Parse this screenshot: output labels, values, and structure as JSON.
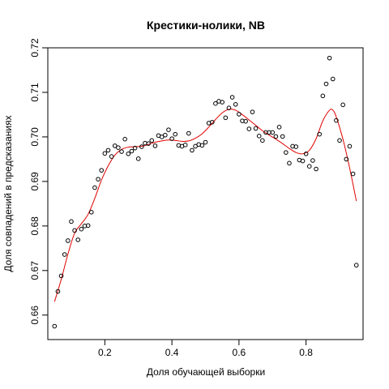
{
  "chart_data": {
    "type": "scatter",
    "title": "Крестики-нолики, NB",
    "xlabel": "Доля обучающей выборки",
    "ylabel": "Доля совпадений в предсказаниях",
    "xlim": [
      0.03,
      0.97
    ],
    "ylim": [
      0.6545,
      0.72
    ],
    "x_ticks": [
      0.2,
      0.4,
      0.6,
      0.8
    ],
    "x_tick_labels": [
      "0.2",
      "0.4",
      "0.6",
      "0.8"
    ],
    "y_ticks": [
      0.66,
      0.67,
      0.68,
      0.69,
      0.7,
      0.71,
      0.72
    ],
    "y_tick_labels": [
      "0.66",
      "0.67",
      "0.68",
      "0.69",
      "0.70",
      "0.71",
      "0.72"
    ],
    "grid": false,
    "series": [
      {
        "kind": "points",
        "color": "#000000",
        "x": [
          0.05,
          0.06,
          0.07,
          0.08,
          0.09,
          0.1,
          0.11,
          0.12,
          0.13,
          0.14,
          0.15,
          0.16,
          0.17,
          0.18,
          0.19,
          0.2,
          0.21,
          0.22,
          0.23,
          0.24,
          0.25,
          0.26,
          0.27,
          0.28,
          0.29,
          0.3,
          0.31,
          0.32,
          0.33,
          0.34,
          0.35,
          0.36,
          0.37,
          0.38,
          0.39,
          0.4,
          0.41,
          0.42,
          0.43,
          0.44,
          0.45,
          0.46,
          0.47,
          0.48,
          0.49,
          0.5,
          0.51,
          0.52,
          0.53,
          0.54,
          0.55,
          0.56,
          0.57,
          0.58,
          0.59,
          0.6,
          0.61,
          0.62,
          0.63,
          0.64,
          0.65,
          0.66,
          0.67,
          0.68,
          0.69,
          0.7,
          0.71,
          0.72,
          0.73,
          0.74,
          0.75,
          0.76,
          0.77,
          0.78,
          0.79,
          0.8,
          0.81,
          0.82,
          0.83,
          0.84,
          0.85,
          0.86,
          0.87,
          0.88,
          0.89,
          0.9,
          0.91,
          0.92,
          0.93,
          0.94,
          0.95
        ],
        "y": [
          0.6575,
          0.6653,
          0.6688,
          0.6736,
          0.6767,
          0.681,
          0.679,
          0.6769,
          0.6793,
          0.68,
          0.6801,
          0.6831,
          0.6886,
          0.6905,
          0.6925,
          0.6963,
          0.697,
          0.6956,
          0.698,
          0.6976,
          0.6967,
          0.6995,
          0.6962,
          0.6968,
          0.6975,
          0.6951,
          0.6978,
          0.6986,
          0.6985,
          0.6992,
          0.698,
          0.7003,
          0.7,
          0.7004,
          0.7016,
          0.6996,
          0.7006,
          0.6981,
          0.6979,
          0.6982,
          0.7008,
          0.697,
          0.6979,
          0.6983,
          0.6981,
          0.6988,
          0.7031,
          0.7033,
          0.7075,
          0.708,
          0.7078,
          0.7043,
          0.7065,
          0.7089,
          0.7073,
          0.7051,
          0.7036,
          0.7035,
          0.7018,
          0.7056,
          0.7019,
          0.7002,
          0.6992,
          0.701,
          0.701,
          0.701,
          0.7001,
          0.7022,
          0.7001,
          0.6965,
          0.6941,
          0.6979,
          0.6978,
          0.6948,
          0.6946,
          0.6962,
          0.6934,
          0.6947,
          0.6928,
          0.7006,
          0.7092,
          0.7119,
          0.7177,
          0.713,
          0.7037,
          0.6992,
          0.7072,
          0.695,
          0.6979,
          0.6917,
          0.6712
        ]
      },
      {
        "kind": "smooth-line",
        "color": "#e00000",
        "x": [
          0.05,
          0.07,
          0.09,
          0.11,
          0.13,
          0.15,
          0.17,
          0.19,
          0.21,
          0.23,
          0.25,
          0.27,
          0.29,
          0.31,
          0.33,
          0.35,
          0.37,
          0.39,
          0.41,
          0.43,
          0.45,
          0.47,
          0.49,
          0.51,
          0.53,
          0.55,
          0.57,
          0.59,
          0.61,
          0.63,
          0.65,
          0.67,
          0.69,
          0.71,
          0.73,
          0.75,
          0.77,
          0.79,
          0.81,
          0.83,
          0.85,
          0.87,
          0.88,
          0.89,
          0.91,
          0.93,
          0.95
        ],
        "y": [
          0.663,
          0.668,
          0.6737,
          0.6784,
          0.6805,
          0.6826,
          0.6862,
          0.6903,
          0.6935,
          0.6959,
          0.6972,
          0.6977,
          0.6978,
          0.6979,
          0.6983,
          0.6988,
          0.6991,
          0.6993,
          0.6992,
          0.699,
          0.6991,
          0.6997,
          0.7007,
          0.7022,
          0.7039,
          0.7054,
          0.7062,
          0.706,
          0.705,
          0.7038,
          0.7026,
          0.7014,
          0.7004,
          0.6995,
          0.6985,
          0.6974,
          0.6965,
          0.6962,
          0.697,
          0.6996,
          0.7036,
          0.706,
          0.706,
          0.7045,
          0.6995,
          0.693,
          0.6856
        ]
      }
    ]
  }
}
